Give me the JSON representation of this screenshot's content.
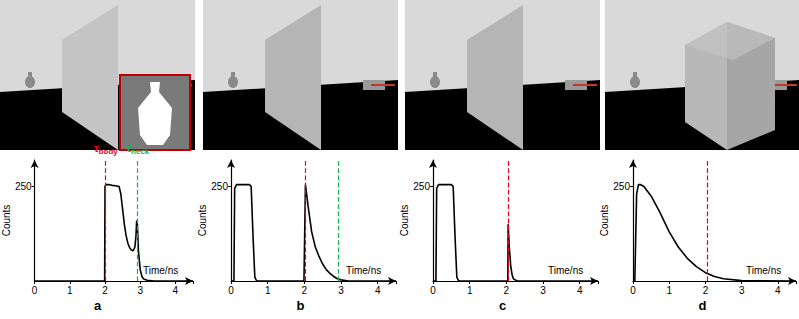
{
  "chart_data": [
    {
      "type": "line",
      "title": "a",
      "x_label": "Time/ns",
      "y_label": "Counts",
      "xlim": [
        0,
        4.5
      ],
      "xticks": [
        0,
        1,
        2,
        3,
        4
      ],
      "ylim": [
        0,
        320
      ],
      "yticks": [
        250
      ],
      "color": "#000000",
      "x": [
        0,
        1.99,
        2.0,
        2.03,
        2.1,
        2.2,
        2.3,
        2.4,
        2.45,
        2.5,
        2.55,
        2.6,
        2.65,
        2.7,
        2.75,
        2.8,
        2.85,
        2.88,
        2.9,
        2.92,
        2.95,
        3.0,
        3.05,
        3.1,
        3.2,
        3.4,
        4.5
      ],
      "values": [
        0,
        0,
        250,
        255,
        255,
        253,
        252,
        250,
        230,
        190,
        150,
        120,
        100,
        88,
        82,
        80,
        90,
        120,
        160,
        150,
        80,
        30,
        12,
        5,
        2,
        0,
        0
      ],
      "markers": [
        {
          "x": 2.02,
          "color": "#e8001c",
          "label": "τbody"
        },
        {
          "x": 2.93,
          "color": "#17b24a",
          "label": "τneck"
        }
      ]
    },
    {
      "type": "line",
      "title": "b",
      "x_label": "Time/ns",
      "y_label": "Counts",
      "xlim": [
        0,
        4.5
      ],
      "xticks": [
        0,
        1,
        2,
        3,
        4
      ],
      "ylim": [
        0,
        320
      ],
      "yticks": [
        250
      ],
      "color": "#000000",
      "x": [
        0,
        0.08,
        0.1,
        0.15,
        0.3,
        0.5,
        0.55,
        0.6,
        0.65,
        0.7,
        1.99,
        2.0,
        2.03,
        2.1,
        2.2,
        2.3,
        2.4,
        2.5,
        2.6,
        2.7,
        2.8,
        2.9,
        3.0,
        3.2,
        4.5
      ],
      "values": [
        0,
        0,
        245,
        255,
        255,
        255,
        250,
        120,
        10,
        0,
        0,
        0,
        255,
        200,
        130,
        90,
        65,
        45,
        30,
        20,
        12,
        6,
        3,
        0,
        0
      ],
      "markers": [
        {
          "x": 2.03,
          "color": "#e8001c"
        },
        {
          "x": 2.93,
          "color": "#17b24a"
        }
      ]
    },
    {
      "type": "line",
      "title": "c",
      "x_label": "Time/ns",
      "y_label": "Counts",
      "xlim": [
        0,
        4.5
      ],
      "xticks": [
        0,
        1,
        2,
        3,
        4
      ],
      "ylim": [
        0,
        320
      ],
      "yticks": [
        250
      ],
      "color": "#000000",
      "x": [
        0,
        0.08,
        0.1,
        0.15,
        0.3,
        0.5,
        0.55,
        0.6,
        0.65,
        0.7,
        2.0,
        2.04,
        2.05,
        2.08,
        2.12,
        2.16,
        2.2,
        2.3,
        4.5
      ],
      "values": [
        0,
        0,
        245,
        255,
        255,
        255,
        250,
        120,
        10,
        0,
        0,
        0,
        150,
        90,
        40,
        15,
        5,
        0,
        0
      ],
      "markers": [
        {
          "x": 2.05,
          "color": "#e8001c"
        }
      ]
    },
    {
      "type": "line",
      "title": "d",
      "x_label": "Time/ns",
      "y_label": "Counts",
      "xlim": [
        0,
        4.5
      ],
      "xticks": [
        0,
        1,
        2,
        3,
        4
      ],
      "ylim": [
        0,
        320
      ],
      "yticks": [
        250
      ],
      "color": "#000000",
      "x": [
        0,
        0.05,
        0.1,
        0.15,
        0.2,
        0.3,
        0.5,
        0.75,
        1.0,
        1.25,
        1.5,
        1.75,
        2.0,
        2.25,
        2.5,
        3.0,
        4.5
      ],
      "values": [
        0,
        0,
        230,
        255,
        255,
        250,
        225,
        180,
        130,
        90,
        60,
        38,
        22,
        12,
        6,
        1,
        0
      ],
      "markers": [
        {
          "x": 2.05,
          "color": "#e8001c"
        }
      ]
    }
  ]
}
